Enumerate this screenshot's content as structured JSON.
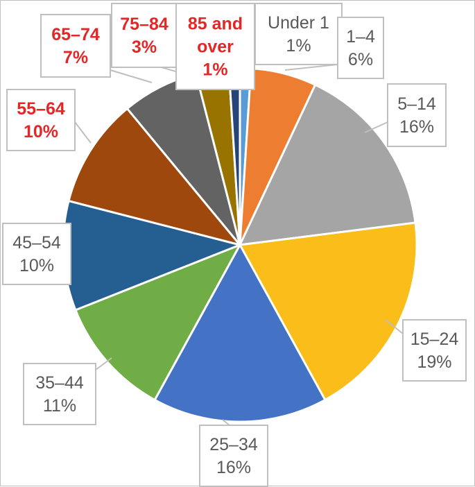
{
  "chart_data": {
    "type": "pie",
    "title": "",
    "start_angle_deg": 0,
    "direction": "clockwise",
    "legend": "none",
    "data_labels": "callouts",
    "slices": [
      {
        "label": "Under 1",
        "value": 1,
        "value_label": "1%",
        "color": "#5b9bd5",
        "label_color": "#595959",
        "label_bold": false
      },
      {
        "label": "1–4",
        "value": 6,
        "value_label": "6%",
        "color": "#ed7d31",
        "label_color": "#595959",
        "label_bold": false
      },
      {
        "label": "5–14",
        "value": 16,
        "value_label": "16%",
        "color": "#a5a5a5",
        "label_color": "#595959",
        "label_bold": false
      },
      {
        "label": "15–24",
        "value": 19,
        "value_label": "19%",
        "color": "#fbbd1a",
        "label_color": "#595959",
        "label_bold": false
      },
      {
        "label": "25–34",
        "value": 16,
        "value_label": "16%",
        "color": "#4472c4",
        "label_color": "#595959",
        "label_bold": false
      },
      {
        "label": "35–44",
        "value": 11,
        "value_label": "11%",
        "color": "#70ad47",
        "label_color": "#595959",
        "label_bold": false
      },
      {
        "label": "45–54",
        "value": 10,
        "value_label": "10%",
        "color": "#255e91",
        "label_color": "#595959",
        "label_bold": false
      },
      {
        "label": "55–64",
        "value": 10,
        "value_label": "10%",
        "color": "#9e480e",
        "label_color": "#e32726",
        "label_bold": true
      },
      {
        "label": "65–74",
        "value": 7,
        "value_label": "7%",
        "color": "#636363",
        "label_color": "#e32726",
        "label_bold": true
      },
      {
        "label": "75–84",
        "value": 3,
        "value_label": "3%",
        "color": "#997300",
        "label_color": "#e32726",
        "label_bold": true
      },
      {
        "label": "85 and over",
        "value": 1,
        "value_label": "1%",
        "color": "#264478",
        "label_color": "#e32726",
        "label_bold": true
      }
    ]
  }
}
